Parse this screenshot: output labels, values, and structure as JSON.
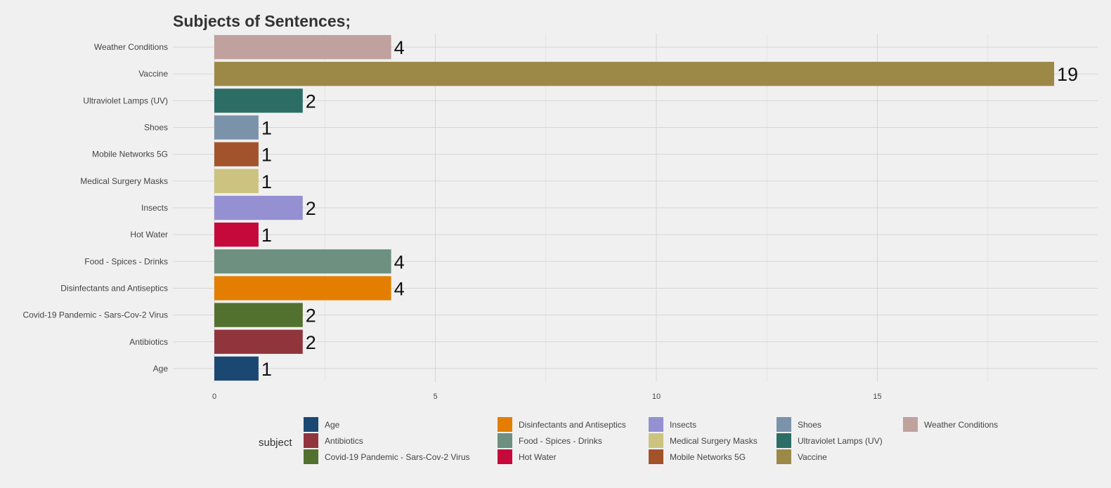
{
  "chart_data": {
    "type": "bar",
    "orientation": "horizontal",
    "title": "Subjects of Sentences;",
    "xlabel": "",
    "ylabel": "",
    "categories": [
      "Age",
      "Antibiotics",
      "Covid-19 Pandemic - Sars-Cov-2 Virus",
      "Disinfectants and Antiseptics",
      "Food - Spices - Drinks",
      "Hot Water",
      "Insects",
      "Medical Surgery Masks",
      "Mobile Networks 5G",
      "Shoes",
      "Ultraviolet Lamps (UV)",
      "Vaccine",
      "Weather Conditions"
    ],
    "values": [
      1,
      2,
      2,
      4,
      4,
      1,
      2,
      1,
      1,
      1,
      2,
      19,
      4
    ],
    "colors": [
      "#1b4872",
      "#91353d",
      "#52712f",
      "#e37e00",
      "#6d9080",
      "#c5093b",
      "#9590d2",
      "#cdc381",
      "#a3532c",
      "#7b92ab",
      "#2c6e66",
      "#9c8847",
      "#c0a19d"
    ],
    "xlim": [
      0,
      19.7
    ],
    "x_ticks": [
      0,
      5,
      10,
      15
    ],
    "grid": true,
    "data_labels": true,
    "legend": {
      "title": "subject",
      "placement": "bottom",
      "columns": [
        [
          "Age",
          "Antibiotics",
          "Covid-19 Pandemic - Sars-Cov-2 Virus"
        ],
        [
          "Disinfectants and Antiseptics",
          "Food - Spices - Drinks",
          "Hot Water"
        ],
        [
          "Insects",
          "Medical Surgery Masks",
          "Mobile Networks 5G"
        ],
        [
          "Shoes",
          "Ultraviolet Lamps (UV)",
          "Vaccine"
        ],
        [
          "Weather Conditions"
        ]
      ]
    }
  }
}
